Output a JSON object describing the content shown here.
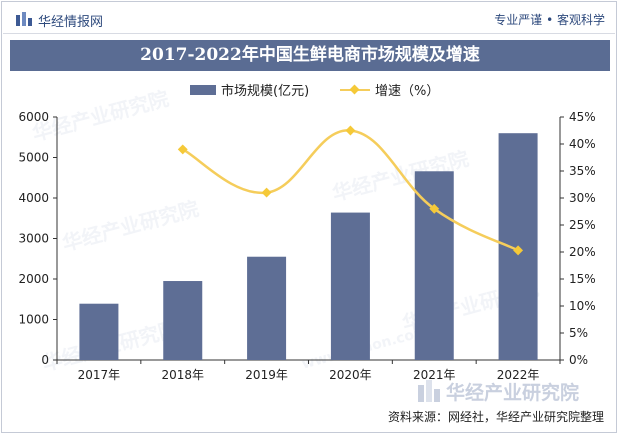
{
  "header": {
    "brand": "华经情报网",
    "tagline": "专业严谨 • 客观科学"
  },
  "chart_data": {
    "type": "bar",
    "title": "2017-2022年中国生鲜电商市场规模及增速",
    "categories": [
      "2017年",
      "2018年",
      "2019年",
      "2020年",
      "2021年",
      "2022年"
    ],
    "series": [
      {
        "name": "市场规模(亿元)",
        "type": "bar",
        "axis": "left",
        "values": [
          1390,
          1950,
          2550,
          3640,
          4660,
          5600
        ]
      },
      {
        "name": "增速（%）",
        "type": "line",
        "axis": "right",
        "values": [
          null,
          39.0,
          31.0,
          42.5,
          28.0,
          20.3
        ]
      }
    ],
    "y_left": {
      "ylim": [
        0,
        6000
      ],
      "ticks": [
        0,
        1000,
        2000,
        3000,
        4000,
        5000,
        6000
      ]
    },
    "y_right": {
      "ylim": [
        0,
        45
      ],
      "ticks": [
        "0%",
        "5%",
        "10%",
        "15%",
        "20%",
        "25%",
        "30%",
        "35%",
        "40%",
        "45%"
      ]
    },
    "colors": {
      "bar": "#5e6e95",
      "line": "#f5cd5b",
      "title_bg": "#5a6c93"
    },
    "legend_position": "top-center",
    "grid": false
  },
  "watermark": {
    "text": "华经产业研究院",
    "url_text": "www.huaon.com"
  },
  "source": "资料来源：网经社，华经产业研究院整理"
}
